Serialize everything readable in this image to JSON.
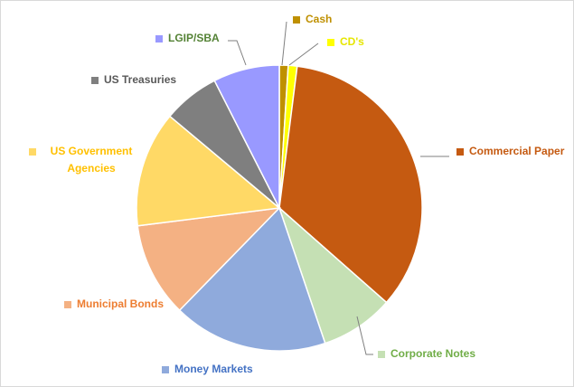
{
  "chart_data": {
    "type": "pie",
    "categories": [
      "Cash",
      "CD's",
      "Commercial Paper",
      "Corporate Notes",
      "Money Markets",
      "Municipal Bonds",
      "US Government Agencies",
      "US Treasuries",
      "LGIP/SBA"
    ],
    "values": [
      1,
      1,
      34.5,
      8.3,
      17.5,
      10.7,
      13.1,
      6.4,
      7.5
    ],
    "colors": [
      "#bf9000",
      "#ffff00",
      "#c55a11",
      "#c5e0b4",
      "#8faadc",
      "#f4b183",
      "#ffd966",
      "#7f7f7f",
      "#9999ff"
    ],
    "label_colors": [
      "#bf9000",
      "#e6e600",
      "#c55a11",
      "#70ad47",
      "#4472c4",
      "#ed7d31",
      "#ffc000",
      "#595959",
      "#548235"
    ]
  }
}
